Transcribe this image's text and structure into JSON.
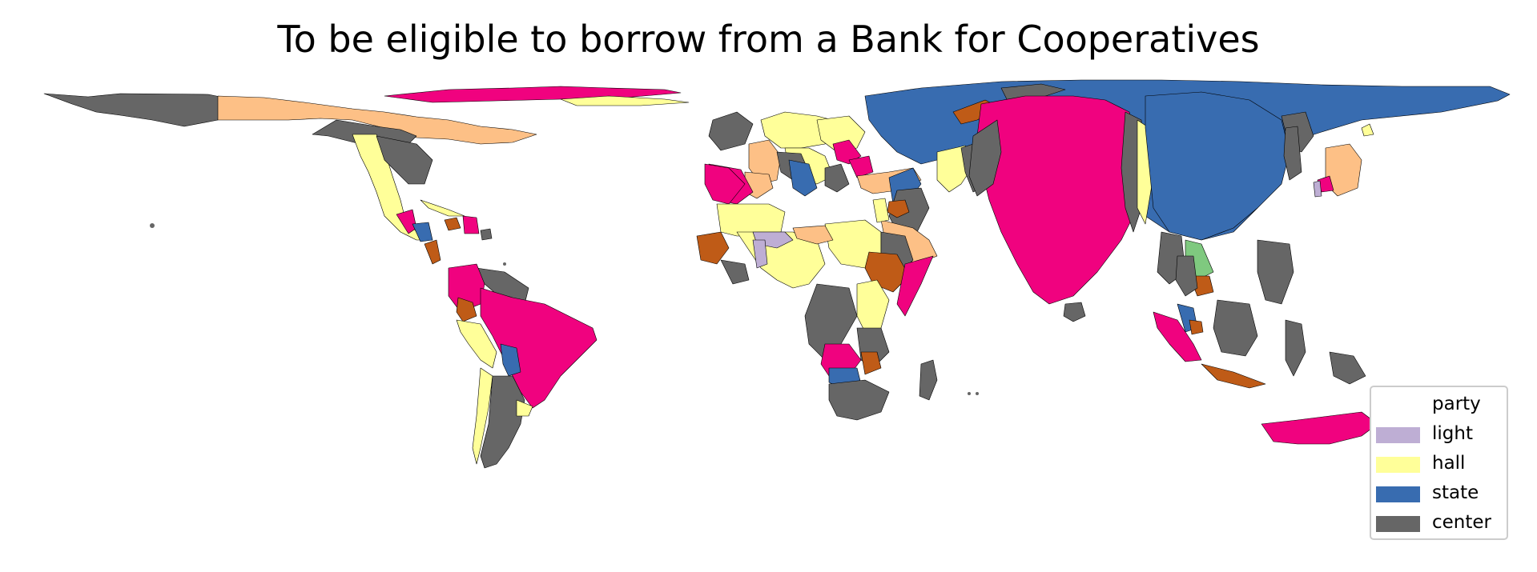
{
  "title": "To be eligible to borrow from a Bank for Cooperatives",
  "legend": {
    "title": "party",
    "items": [
      {
        "label": "light",
        "color": "#beaed4"
      },
      {
        "label": "hall",
        "color": "#ffff99"
      },
      {
        "label": "state",
        "color": "#386cb0"
      },
      {
        "label": "center",
        "color": "#666666"
      }
    ]
  },
  "map_colors": {
    "pink": "#f0027f",
    "peach": "#fdc086",
    "brown": "#bf5b17",
    "green": "#7fc97f",
    "yellow": "#ffff99",
    "blue": "#386cb0",
    "gray": "#666666",
    "lavender": "#beaed4"
  }
}
